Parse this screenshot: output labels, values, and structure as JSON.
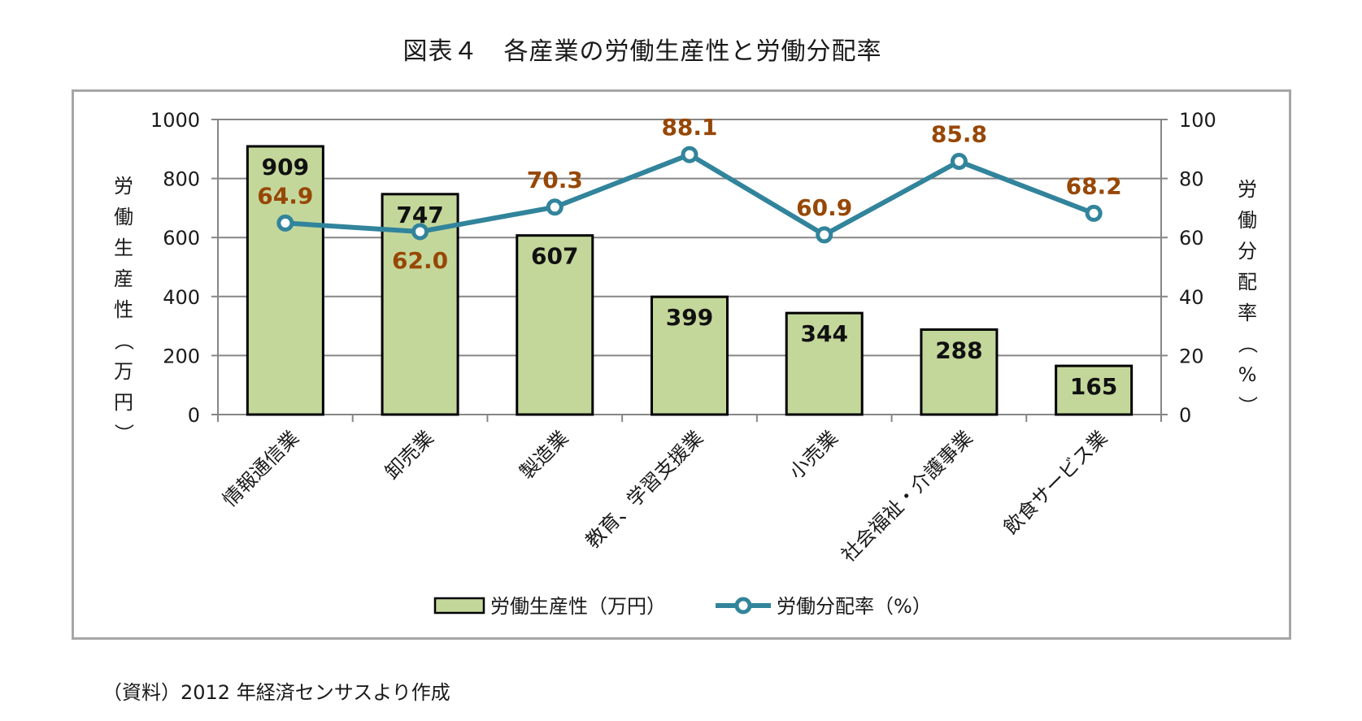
{
  "title": "図表４　各産業の労働生産性と労働分配率",
  "source_note": "（資料）2012 年経済センサスより作成",
  "colors": {
    "bar_fill": "#c4d79b",
    "bar_stroke": "#000000",
    "line": "#31849b",
    "line_label": "#974706",
    "grid": "#868686",
    "frame": "#a6a6a6"
  },
  "chart_data": {
    "type": "bar",
    "title": "図表４　各産業の労働生産性と労働分配率",
    "categories": [
      "情報通信業",
      "卸売業",
      "製造業",
      "教育、学習支援業",
      "小売業",
      "社会福祉・介護事業",
      "飲食サービス業"
    ],
    "series": [
      {
        "name": "労働生産性（万円）",
        "type": "bar",
        "axis": "left",
        "values": [
          909,
          747,
          607,
          399,
          344,
          288,
          165
        ],
        "labels": [
          "909",
          "747",
          "607",
          "399",
          "344",
          "288",
          "165"
        ]
      },
      {
        "name": "労働分配率（%）",
        "type": "line",
        "axis": "right",
        "values": [
          64.9,
          62.0,
          70.3,
          88.1,
          60.9,
          85.8,
          68.2
        ],
        "labels": [
          "64.9",
          "62.0",
          "70.3",
          "88.1",
          "60.9",
          "85.8",
          "68.2"
        ]
      }
    ],
    "ylabel_left": "労働生産性（万円）",
    "ylabel_right": "労働分配率（%）",
    "ylim_left": [
      0,
      1000
    ],
    "ylim_right": [
      0,
      100
    ],
    "yticks_left": [
      "0",
      "200",
      "400",
      "600",
      "800",
      "1000"
    ],
    "yticks_right": [
      "0",
      "20",
      "40",
      "60",
      "80",
      "100"
    ],
    "grid": true,
    "legend_position": "bottom"
  }
}
